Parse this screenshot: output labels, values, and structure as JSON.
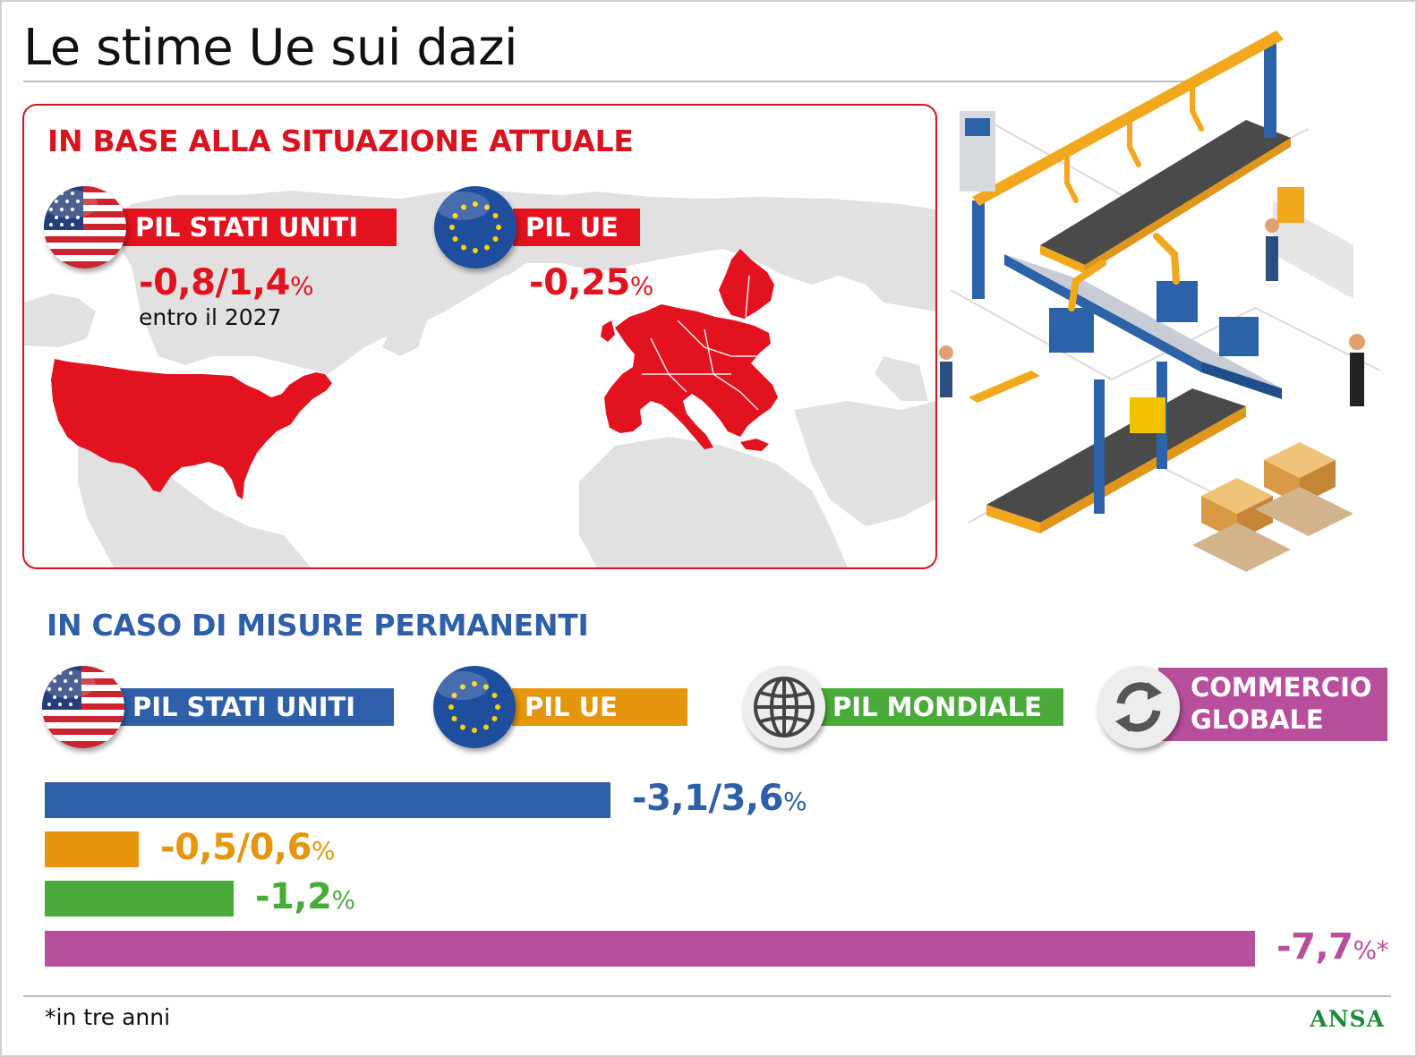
{
  "title": "Le stime Ue sui dazi",
  "current": {
    "heading": "IN BASE ALLA SITUAZIONE ATTUALE",
    "us": {
      "label": "PIL STATI UNITI",
      "value": "-0,8/1,4",
      "unit": "%",
      "note": "entro il 2027"
    },
    "eu": {
      "label": "PIL UE",
      "value": "-0,25",
      "unit": "%"
    }
  },
  "permanent": {
    "heading": "IN CASO DI MISURE PERMANENTI",
    "legend": [
      {
        "label": "PIL STATI UNITI",
        "color": "#2e5fa8",
        "icon": "us-flag-icon"
      },
      {
        "label": "PIL UE",
        "color": "#e6960e",
        "icon": "eu-flag-icon"
      },
      {
        "label": "PIL MONDIALE",
        "color": "#4aab3a",
        "icon": "globe-icon"
      },
      {
        "label": "COMMERCIO",
        "label2": "GLOBALE",
        "color": "#b84f9c",
        "icon": "refresh-icon"
      }
    ]
  },
  "chart_data": {
    "type": "bar",
    "orientation": "horizontal",
    "title": "IN CASO DI MISURE PERMANENTI",
    "categories": [
      "PIL STATI UNITI",
      "PIL UE",
      "PIL MONDIALE",
      "COMMERCIO GLOBALE"
    ],
    "values": [
      3.6,
      0.6,
      1.2,
      7.7
    ],
    "labels": [
      "-3,1/3,6",
      "-0,5/0,6",
      "-1,2",
      "-7,7"
    ],
    "units": [
      "%",
      "%",
      "%",
      "%*"
    ],
    "colors": [
      "#2e5fa8",
      "#e6960e",
      "#4aab3a",
      "#b84f9c"
    ],
    "grid": false
  },
  "footnote": "*in tre anni",
  "source": "ANSA"
}
